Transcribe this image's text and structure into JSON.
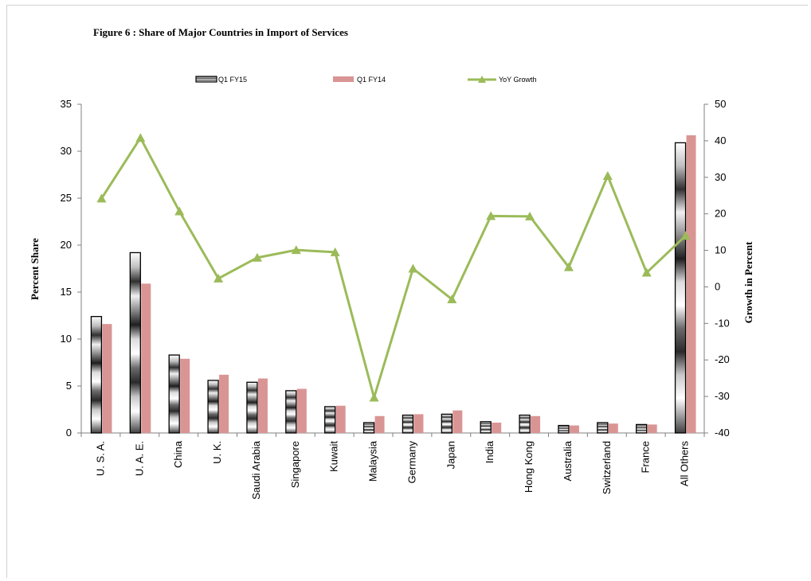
{
  "chart_data": {
    "type": "bar",
    "title": "Figure  6 :  Share of Major Countries in Import of Services",
    "categories": [
      "U. S. A.",
      "U. A. E.",
      "China",
      "U. K.",
      "Saudi Arabia",
      "Singapore",
      "Kuwait",
      "Malaysia",
      "Germany",
      "Japan",
      "India",
      "Hong Kong",
      "Australia",
      "Switzerland",
      "France",
      "All Others"
    ],
    "series": [
      {
        "name": "Q1 FY15",
        "type": "bar",
        "axis": "left",
        "values": [
          12.4,
          19.2,
          8.3,
          5.6,
          5.4,
          4.5,
          2.8,
          1.1,
          1.9,
          2.0,
          1.2,
          1.9,
          0.8,
          1.1,
          0.9,
          30.9
        ]
      },
      {
        "name": "Q1 FY14",
        "type": "bar",
        "axis": "left",
        "color": "#d99594",
        "values": [
          11.6,
          15.9,
          7.9,
          6.2,
          5.8,
          4.7,
          2.9,
          1.8,
          2.0,
          2.4,
          1.1,
          1.8,
          0.8,
          1.0,
          0.9,
          31.7
        ]
      },
      {
        "name": "YoY Growth",
        "type": "line",
        "axis": "right",
        "color": "#9bbb59",
        "values": [
          24.2,
          40.8,
          20.7,
          2.3,
          8.0,
          10.1,
          9.5,
          -30.3,
          5.0,
          -3.4,
          19.4,
          19.3,
          5.4,
          30.4,
          3.9,
          14.0
        ]
      }
    ],
    "ylabel": "Percent Share",
    "y2label": "Growth in Percent",
    "ylim": [
      0,
      35
    ],
    "yticks": [
      0,
      5,
      10,
      15,
      20,
      25,
      30,
      35
    ],
    "y2lim": [
      -40,
      50
    ],
    "y2ticks": [
      -40,
      -30,
      -20,
      -10,
      0,
      10,
      20,
      30,
      40,
      50
    ],
    "grid": false,
    "legend_position": "top"
  }
}
